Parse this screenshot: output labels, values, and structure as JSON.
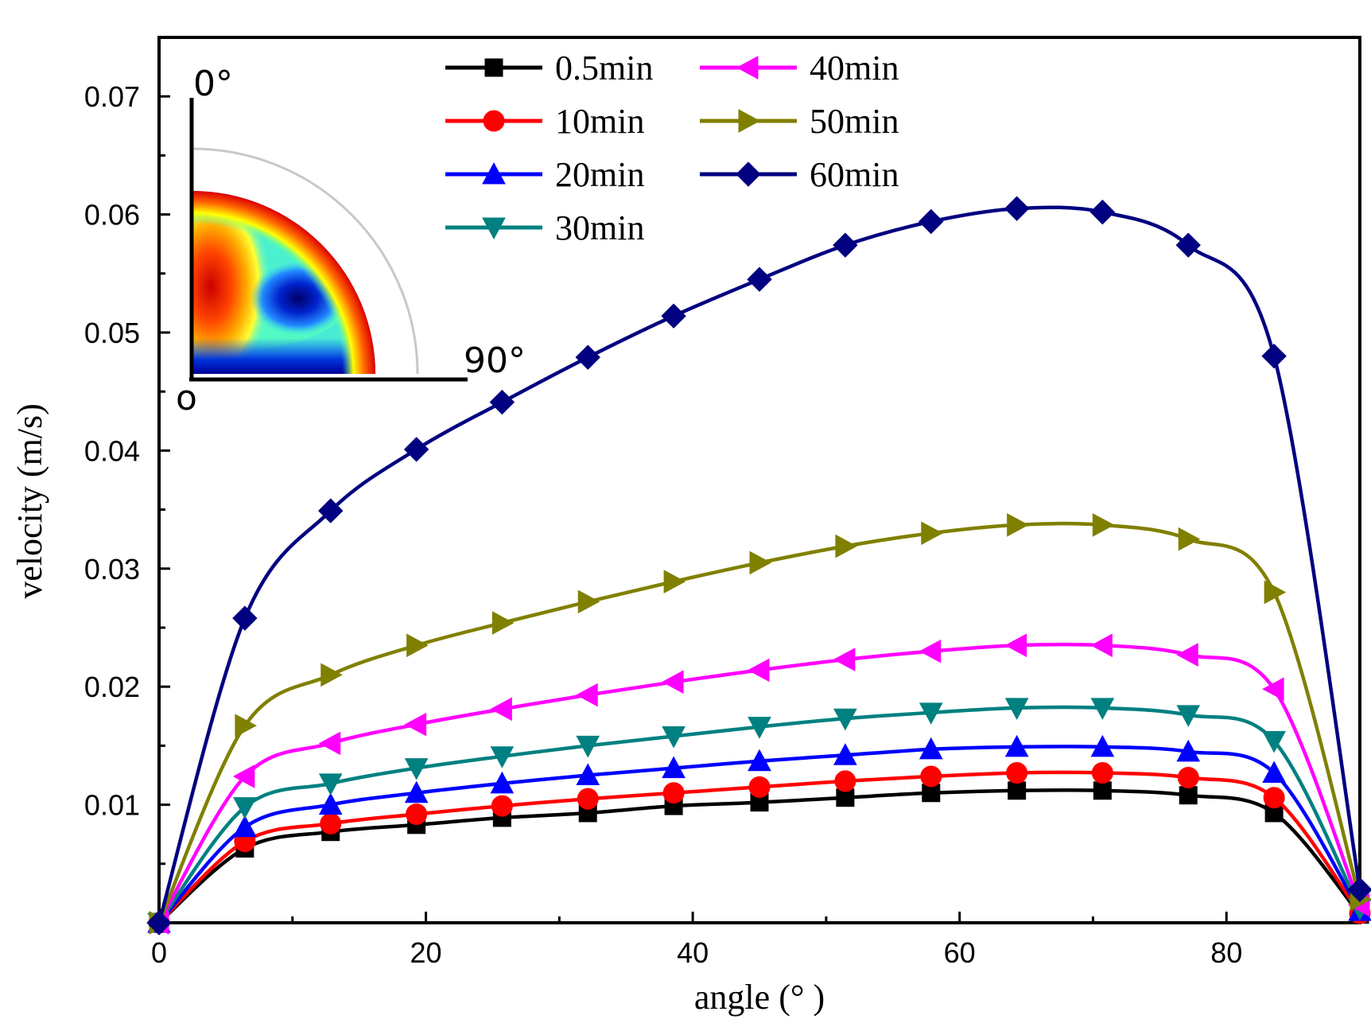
{
  "chart_data": {
    "type": "line",
    "title": "",
    "xlabel": "angle (°  )",
    "ylabel": "velocity (m/s)",
    "xlim": [
      0,
      90
    ],
    "ylim": [
      0,
      0.075
    ],
    "x_ticks": [
      0,
      20,
      40,
      60,
      80
    ],
    "x_tick_labels": [
      "0",
      "20",
      "40",
      "60",
      "80"
    ],
    "y_ticks": [
      0.01,
      0.02,
      0.03,
      0.04,
      0.05,
      0.06,
      0.07
    ],
    "y_tick_labels": [
      "0.01",
      "0.02",
      "0.03",
      "0.04",
      "0.05",
      "0.06",
      "0.07"
    ],
    "grid": false,
    "legend_position": "top-center",
    "x": [
      0,
      6.43,
      12.86,
      19.29,
      25.71,
      32.14,
      38.57,
      45.0,
      51.43,
      57.86,
      64.29,
      70.71,
      77.14,
      83.57,
      90
    ],
    "series": [
      {
        "name": "0.5min",
        "color": "#000000",
        "marker": "square",
        "values": [
          0,
          0.0063,
          0.0077,
          0.0083,
          0.0089,
          0.0093,
          0.0099,
          0.0102,
          0.0106,
          0.011,
          0.0112,
          0.0112,
          0.0108,
          0.0093,
          0.0007
        ]
      },
      {
        "name": "10min",
        "color": "#ff0000",
        "marker": "circle",
        "values": [
          0,
          0.0069,
          0.0084,
          0.0092,
          0.0099,
          0.0105,
          0.011,
          0.0115,
          0.012,
          0.0124,
          0.0127,
          0.0127,
          0.0123,
          0.0106,
          0.0008
        ]
      },
      {
        "name": "20min",
        "color": "#0000ff",
        "marker": "triangle-up",
        "values": [
          0,
          0.0081,
          0.01,
          0.011,
          0.0118,
          0.0125,
          0.0131,
          0.0137,
          0.0142,
          0.0147,
          0.0149,
          0.0149,
          0.0145,
          0.0127,
          0.001
        ]
      },
      {
        "name": "30min",
        "color": "#008080",
        "marker": "triangle-down",
        "values": [
          0,
          0.0098,
          0.0118,
          0.0131,
          0.0141,
          0.015,
          0.0158,
          0.0166,
          0.0173,
          0.0178,
          0.0182,
          0.0182,
          0.0176,
          0.0154,
          0.0012
        ]
      },
      {
        "name": "40min",
        "color": "#ff00ff",
        "marker": "triangle-left",
        "values": [
          0,
          0.0124,
          0.0152,
          0.0168,
          0.0181,
          0.0193,
          0.0204,
          0.0214,
          0.0223,
          0.023,
          0.0235,
          0.0235,
          0.0227,
          0.0198,
          0.0015
        ]
      },
      {
        "name": "50min",
        "color": "#808000",
        "marker": "triangle-right",
        "values": [
          0,
          0.0167,
          0.021,
          0.0235,
          0.0254,
          0.0272,
          0.0289,
          0.0305,
          0.0319,
          0.033,
          0.0337,
          0.0337,
          0.0325,
          0.028,
          0.002
        ]
      },
      {
        "name": "60min",
        "color": "#000080",
        "marker": "diamond",
        "values": [
          0,
          0.0258,
          0.0349,
          0.0401,
          0.0441,
          0.0479,
          0.0514,
          0.0545,
          0.0574,
          0.0594,
          0.0605,
          0.0602,
          0.0574,
          0.048,
          0.0028
        ]
      }
    ]
  },
  "inset": {
    "label_top": "0°",
    "label_right": "90°",
    "label_origin": "o"
  }
}
